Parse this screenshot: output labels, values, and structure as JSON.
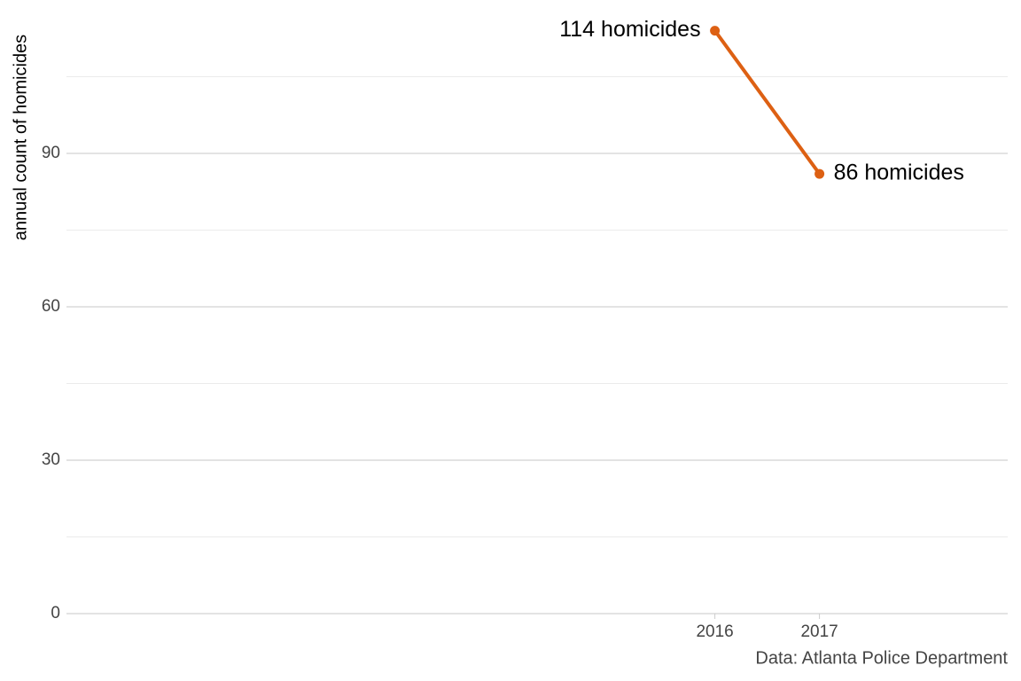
{
  "chart_data": {
    "type": "line",
    "y_label": "annual count of homicides",
    "caption": "Data: Atlanta Police Department",
    "x": [
      2016,
      2017
    ],
    "series": [
      {
        "name": "homicides",
        "color": "#dd6013",
        "values": [
          114,
          86
        ],
        "value_labels": [
          "114 homicides",
          "86 homicides"
        ]
      }
    ],
    "xlim": [
      2009.8,
      2018.8
    ],
    "xticks": [
      2016,
      2017
    ],
    "ylim": [
      0,
      117
    ],
    "yticks": [
      0,
      30,
      60,
      90
    ],
    "minor_yticks": [
      15,
      45,
      75,
      105
    ],
    "grid": true
  }
}
